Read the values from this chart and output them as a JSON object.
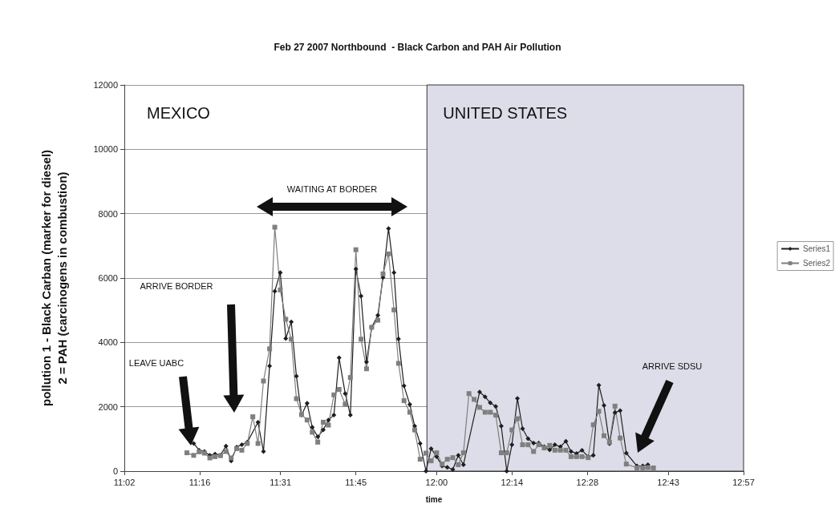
{
  "chart_data": {
    "type": "line",
    "title": "Feb 27 2007 Northbound  - Black Carbon and PAH Air Pollution",
    "xlabel": "time",
    "ylabel": "pollution 1 - Black Carban (marker for diesel)\n2 = PAH (carcinogens in combustion)",
    "xlim": [
      11.0333,
      12.95
    ],
    "xticks": [
      {
        "value": 11.0333,
        "label": "11:02"
      },
      {
        "value": 11.2667,
        "label": "11:16"
      },
      {
        "value": 11.5167,
        "label": "11:31"
      },
      {
        "value": 11.75,
        "label": "11:45"
      },
      {
        "value": 12.0,
        "label": "12:00"
      },
      {
        "value": 12.2333,
        "label": "12:14"
      },
      {
        "value": 12.4667,
        "label": "12:28"
      },
      {
        "value": 12.7167,
        "label": "12:43"
      },
      {
        "value": 12.95,
        "label": "12:57"
      }
    ],
    "ylim": [
      0,
      12000
    ],
    "yticks": [
      0,
      2000,
      4000,
      6000,
      8000,
      10000,
      12000
    ],
    "grid": "y",
    "legend": "right",
    "series": [
      {
        "name": "Series1",
        "color": "#1e1e1e",
        "marker": "diamond",
        "x": [
          11.248,
          11.265,
          11.281,
          11.298,
          11.314,
          11.331,
          11.348,
          11.364,
          11.381,
          11.397,
          11.414,
          11.447,
          11.464,
          11.483,
          11.499,
          11.516,
          11.533,
          11.55,
          11.566,
          11.582,
          11.599,
          11.615,
          11.632,
          11.649,
          11.665,
          11.682,
          11.698,
          11.717,
          11.733,
          11.75,
          11.766,
          11.783,
          11.799,
          11.818,
          11.834,
          11.851,
          11.868,
          11.882,
          11.899,
          11.917,
          11.932,
          11.949,
          11.967,
          11.983,
          12.0,
          12.017,
          12.033,
          12.05,
          12.067,
          12.083,
          12.133,
          12.15,
          12.166,
          12.183,
          12.2,
          12.217,
          12.233,
          12.25,
          12.266,
          12.283,
          12.3,
          12.316,
          12.333,
          12.35,
          12.366,
          12.383,
          12.4,
          12.416,
          12.433,
          12.45,
          12.469,
          12.485,
          12.502,
          12.518,
          12.535,
          12.552,
          12.568,
          12.587,
          12.62,
          12.638,
          12.654
        ],
        "values": [
          860,
          650,
          610,
          490,
          530,
          500,
          780,
          320,
          750,
          820,
          900,
          1520,
          610,
          3270,
          5590,
          6170,
          4120,
          4640,
          2950,
          1740,
          2110,
          1360,
          1070,
          1280,
          1590,
          1740,
          3520,
          2410,
          1740,
          6280,
          5440,
          3390,
          4470,
          4840,
          6020,
          7540,
          6170,
          4110,
          2650,
          2070,
          1400,
          860,
          0,
          700,
          450,
          160,
          120,
          50,
          490,
          200,
          2460,
          2310,
          2120,
          2010,
          1400,
          0,
          820,
          2260,
          1320,
          1010,
          870,
          870,
          760,
          660,
          820,
          760,
          930,
          610,
          550,
          650,
          450,
          490,
          2670,
          2040,
          850,
          1820,
          1880,
          560,
          160,
          160,
          200
        ]
      },
      {
        "name": "Series2",
        "color": "#7f7f7f",
        "marker": "square",
        "x": [
          11.227,
          11.248,
          11.265,
          11.281,
          11.298,
          11.314,
          11.331,
          11.348,
          11.364,
          11.381,
          11.397,
          11.414,
          11.431,
          11.447,
          11.464,
          11.483,
          11.499,
          11.516,
          11.533,
          11.55,
          11.566,
          11.582,
          11.599,
          11.615,
          11.632,
          11.649,
          11.665,
          11.682,
          11.698,
          11.717,
          11.733,
          11.75,
          11.766,
          11.783,
          11.799,
          11.818,
          11.834,
          11.851,
          11.868,
          11.882,
          11.899,
          11.917,
          11.932,
          11.949,
          11.967,
          11.983,
          12.0,
          12.017,
          12.033,
          12.05,
          12.067,
          12.083,
          12.1,
          12.116,
          12.133,
          12.15,
          12.166,
          12.183,
          12.2,
          12.217,
          12.233,
          12.25,
          12.266,
          12.283,
          12.3,
          12.316,
          12.333,
          12.35,
          12.366,
          12.383,
          12.4,
          12.416,
          12.433,
          12.45,
          12.469,
          12.485,
          12.502,
          12.518,
          12.535,
          12.552,
          12.568,
          12.587,
          12.62,
          12.638,
          12.654,
          12.671
        ],
        "values": [
          570,
          490,
          600,
          560,
          410,
          450,
          480,
          610,
          410,
          700,
          650,
          860,
          1690,
          860,
          2800,
          3800,
          7580,
          5630,
          4720,
          4100,
          2250,
          1760,
          1590,
          1210,
          900,
          1520,
          1430,
          2370,
          2540,
          2080,
          2910,
          6880,
          4100,
          3180,
          4470,
          4690,
          6130,
          6750,
          5010,
          3350,
          2190,
          1830,
          1280,
          370,
          560,
          320,
          570,
          220,
          370,
          420,
          200,
          570,
          2410,
          2230,
          1980,
          1830,
          1830,
          1740,
          570,
          570,
          1280,
          1630,
          820,
          820,
          610,
          820,
          720,
          800,
          650,
          650,
          650,
          450,
          450,
          450,
          420,
          1440,
          1860,
          1100,
          900,
          2020,
          1030,
          220,
          100,
          100,
          110,
          100
        ]
      }
    ],
    "bands": [
      {
        "axis": "x",
        "from": 11.97,
        "to": 12.95,
        "label": "UNITED STATES",
        "color": "#dddde9"
      }
    ],
    "annotations": [
      "MEXICO",
      "WAITING AT BORDER",
      "LEAVE UABC",
      "ARRIVE BORDER",
      "ARRIVE SDSU"
    ]
  }
}
